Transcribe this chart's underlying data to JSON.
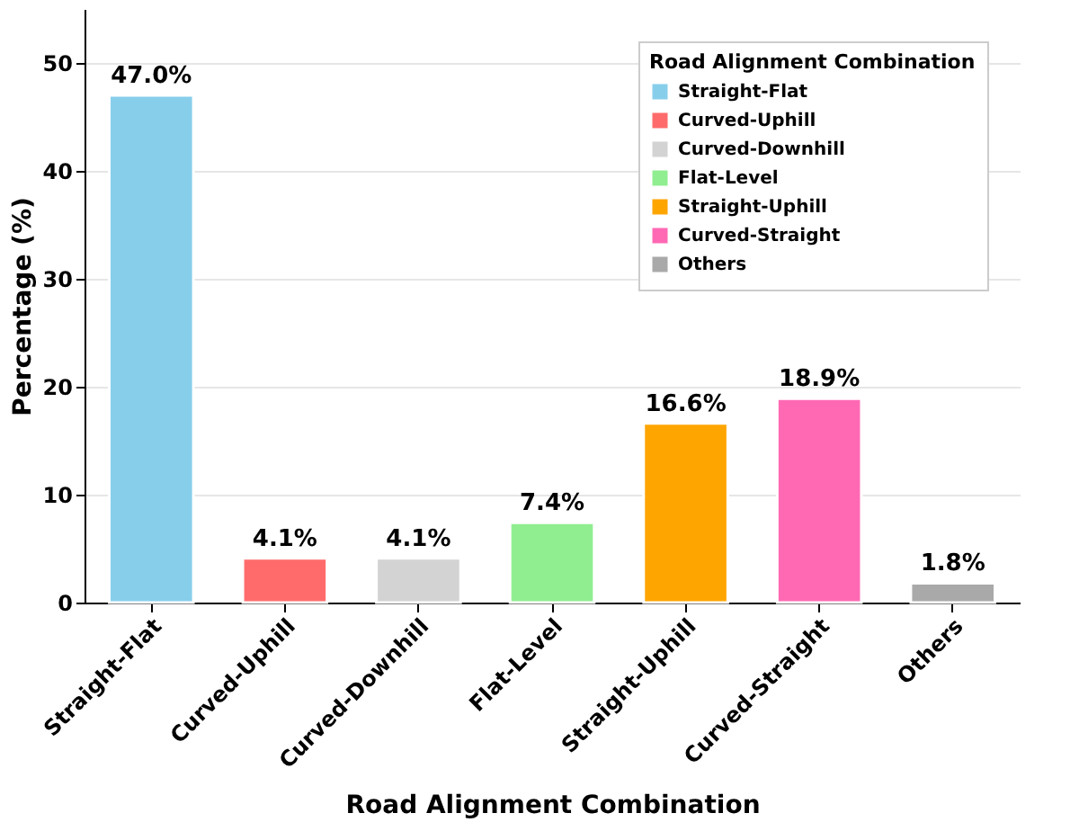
{
  "chart_data": {
    "type": "bar",
    "xlabel": "Road Alignment Combination",
    "ylabel": "Percentage (%)",
    "legend_title": "Road Alignment Combination",
    "categories": [
      "Straight-Flat",
      "Curved-Uphill",
      "Curved-Downhill",
      "Flat-Level",
      "Straight-Uphill",
      "Curved-Straight",
      "Others"
    ],
    "series": [
      {
        "name": "Straight-Flat",
        "color": "#87ceeb",
        "values": [
          47.0,
          null,
          null,
          null,
          null,
          null,
          null
        ],
        "value_labels": [
          "47.0%",
          null,
          null,
          null,
          null,
          null,
          null
        ]
      },
      {
        "name": "Curved-Uphill",
        "color": "#ff6b6b",
        "values": [
          null,
          4.1,
          null,
          null,
          null,
          null,
          null
        ],
        "value_labels": [
          null,
          "4.1%",
          null,
          null,
          null,
          null,
          null
        ]
      },
      {
        "name": "Curved-Downhill",
        "color": "#d3d3d3",
        "values": [
          null,
          null,
          4.1,
          null,
          null,
          null,
          null
        ],
        "value_labels": [
          null,
          null,
          "4.1%",
          null,
          null,
          null,
          null
        ]
      },
      {
        "name": "Flat-Level",
        "color": "#90ee90",
        "values": [
          null,
          null,
          null,
          7.4,
          null,
          null,
          null
        ],
        "value_labels": [
          null,
          null,
          null,
          "7.4%",
          null,
          null,
          null
        ]
      },
      {
        "name": "Straight-Uphill",
        "color": "#ffa500",
        "values": [
          null,
          null,
          null,
          null,
          16.6,
          null,
          null
        ],
        "value_labels": [
          null,
          null,
          null,
          null,
          "16.6%",
          null,
          null
        ]
      },
      {
        "name": "Curved-Straight",
        "color": "#ff69b4",
        "values": [
          null,
          null,
          null,
          null,
          null,
          18.9,
          null
        ],
        "value_labels": [
          null,
          null,
          null,
          null,
          null,
          "18.9%",
          null
        ]
      },
      {
        "name": "Others",
        "color": "#a9a9a9",
        "values": [
          null,
          null,
          null,
          null,
          null,
          null,
          1.8
        ],
        "value_labels": [
          null,
          null,
          null,
          null,
          null,
          null,
          "1.8%"
        ]
      }
    ],
    "ylim": [
      0,
      55
    ],
    "yticks": [
      0,
      10,
      20,
      30,
      40,
      50
    ],
    "grid": "y",
    "legend": "top right"
  }
}
